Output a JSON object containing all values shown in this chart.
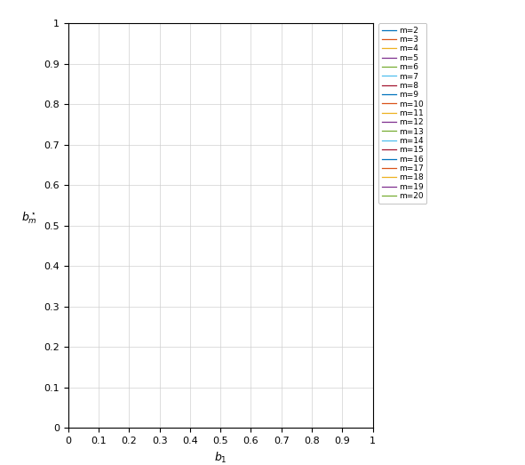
{
  "m_values": [
    2,
    3,
    4,
    5,
    6,
    7,
    8,
    9,
    10,
    11,
    12,
    13,
    14,
    15,
    16,
    17,
    18,
    19,
    20
  ],
  "matlab_colors": [
    "#0072BD",
    "#D95319",
    "#EDB120",
    "#7E2F8E",
    "#77AC30",
    "#4DBEEE",
    "#A2142F",
    "#0072BD",
    "#D95319",
    "#EDB120",
    "#7E2F8E",
    "#77AC30",
    "#4DBEEE",
    "#A2142F",
    "#0072BD",
    "#D95319",
    "#EDB120",
    "#7E2F8E",
    "#77AC30"
  ],
  "xlabel": "$b_1$",
  "ylabel": "$b_m^\\star$",
  "xlim": [
    0,
    1
  ],
  "ylim": [
    0,
    1
  ],
  "xticks": [
    0,
    0.1,
    0.2,
    0.3,
    0.4,
    0.5,
    0.6,
    0.7,
    0.8,
    0.9,
    1
  ],
  "yticks": [
    0,
    0.1,
    0.2,
    0.3,
    0.4,
    0.5,
    0.6,
    0.7,
    0.8,
    0.9,
    1
  ],
  "xtick_labels": [
    "0",
    "0.1",
    "0.2",
    "0.3",
    "0.4",
    "0.5",
    "0.6",
    "0.7",
    "0.8",
    "0.9",
    "1"
  ],
  "ytick_labels": [
    "0",
    "0.1",
    "0.2",
    "0.3",
    "0.4",
    "0.5",
    "0.6",
    "0.7",
    "0.8",
    "0.9",
    "1"
  ],
  "grid": true,
  "total_figsize": [
    5.91,
    5.23
  ],
  "dpi": 100,
  "page_bg": "#ffffff",
  "axis_bg": "#ffffff",
  "linewidth": 0.9,
  "legend_fontsize": 6.5,
  "tick_fontsize": 8,
  "axis_label_fontsize": 9
}
